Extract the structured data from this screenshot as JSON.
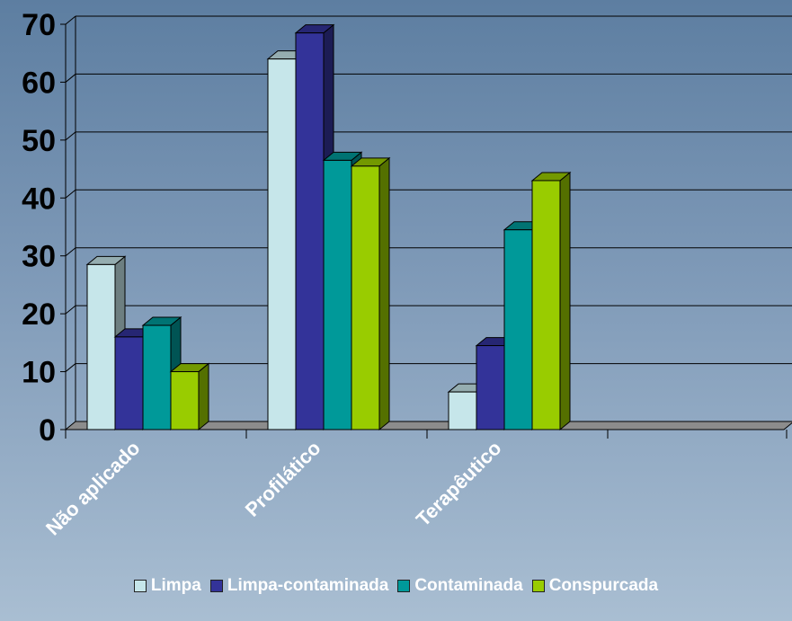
{
  "chart_data": {
    "type": "bar",
    "categories": [
      "Não aplicado",
      "Profilático",
      "Terapêutico"
    ],
    "series": [
      {
        "name": "Limpa",
        "values": [
          28.5,
          64,
          6.5
        ],
        "color": "#c6e6ea"
      },
      {
        "name": "Limpa-contaminada",
        "values": [
          16,
          68.5,
          14.5
        ],
        "color": "#333399"
      },
      {
        "name": "Contaminada",
        "values": [
          18,
          46.5,
          34.5
        ],
        "color": "#009999"
      },
      {
        "name": "Conspurcada",
        "values": [
          10,
          45.5,
          43
        ],
        "color": "#99cc00"
      }
    ],
    "y_ticks": [
      "0",
      "10",
      "20",
      "30",
      "40",
      "50",
      "60",
      "70"
    ],
    "ylim": [
      0,
      70
    ],
    "grid": true,
    "legend_position": "bottom"
  }
}
